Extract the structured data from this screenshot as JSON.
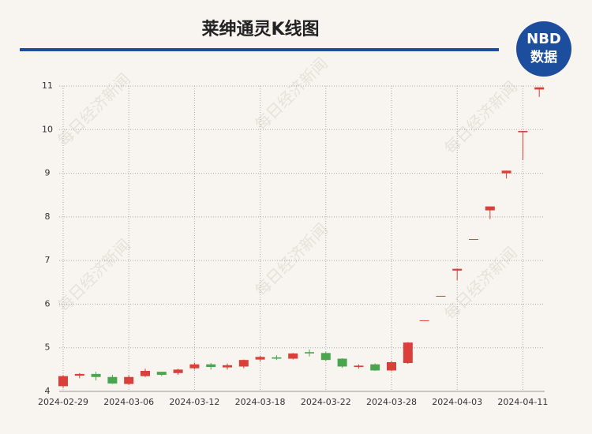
{
  "chart_data": {
    "type": "candlestick",
    "title": "莱绅通灵K线图",
    "logo_top": "NBD",
    "logo_bottom": "数据",
    "watermark": "每日经济新闻",
    "categories": [
      "2024-02-29",
      null,
      null,
      null,
      "2024-03-06",
      null,
      null,
      null,
      "2024-03-12",
      null,
      null,
      null,
      "2024-03-18",
      null,
      null,
      null,
      "2024-03-22",
      null,
      null,
      null,
      "2024-03-28",
      null,
      null,
      null,
      "2024-04-03",
      null,
      null,
      null,
      "2024-04-11",
      null
    ],
    "open": [
      4.12,
      4.36,
      4.4,
      4.33,
      4.17,
      4.35,
      4.45,
      4.42,
      4.53,
      4.62,
      4.55,
      4.57,
      4.73,
      4.78,
      4.75,
      4.9,
      4.88,
      4.75,
      4.56,
      4.62,
      4.48,
      4.65,
      5.63,
      6.19,
      6.77,
      7.49,
      8.15,
      9.0,
      9.94,
      10.92
    ],
    "high": [
      4.37,
      4.42,
      4.45,
      4.38,
      4.37,
      4.52,
      4.45,
      4.52,
      4.66,
      4.65,
      4.64,
      4.73,
      4.82,
      4.83,
      4.88,
      4.96,
      4.9,
      4.76,
      4.62,
      4.64,
      4.7,
      5.13,
      5.63,
      6.19,
      6.81,
      7.49,
      8.24,
      9.06,
      9.97,
      10.97
    ],
    "low": [
      4.08,
      4.3,
      4.25,
      4.17,
      4.15,
      4.33,
      4.35,
      4.38,
      4.5,
      4.5,
      4.5,
      4.53,
      4.68,
      4.72,
      4.73,
      4.8,
      4.7,
      4.54,
      4.52,
      4.47,
      4.46,
      4.63,
      5.63,
      6.19,
      6.55,
      7.49,
      7.95,
      8.88,
      9.3,
      10.75
    ],
    "close": [
      4.35,
      4.4,
      4.33,
      4.18,
      4.33,
      4.47,
      4.38,
      4.5,
      4.62,
      4.56,
      4.6,
      4.72,
      4.79,
      4.75,
      4.87,
      4.87,
      4.72,
      4.57,
      4.59,
      4.48,
      4.67,
      5.12,
      5.63,
      6.19,
      6.81,
      7.49,
      8.24,
      9.06,
      9.97,
      10.97
    ],
    "up_color": "#d9403a",
    "down_color": "#4aa64e",
    "ylim": [
      4,
      11
    ],
    "yticks": [
      4,
      5,
      6,
      7,
      8,
      9,
      10,
      11
    ],
    "grid": true
  }
}
